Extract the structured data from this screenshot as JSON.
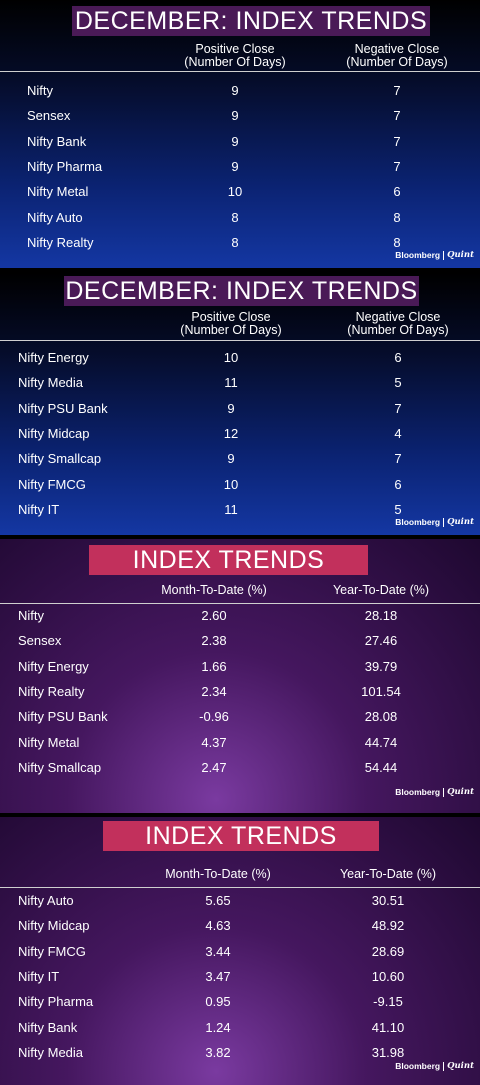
{
  "brand": {
    "part1": "Bloomberg",
    "part2": "Quint"
  },
  "chart_data": [
    {
      "type": "table",
      "title": "DECEMBER: INDEX TRENDS",
      "columns": [
        "Positive Close\n(Number Of Days)",
        "Negative Close\n(Number Of Days)"
      ],
      "column_lines": [
        [
          "Positive Close",
          "(Number Of Days)"
        ],
        [
          "Negative Close",
          "(Number Of Days)"
        ]
      ],
      "rows": [
        {
          "label": "Nifty",
          "values": [
            "9",
            "7"
          ]
        },
        {
          "label": "Sensex",
          "values": [
            "9",
            "7"
          ]
        },
        {
          "label": "Nifty Bank",
          "values": [
            "9",
            "7"
          ]
        },
        {
          "label": "Nifty Pharma",
          "values": [
            "9",
            "7"
          ]
        },
        {
          "label": "Nifty Metal",
          "values": [
            "10",
            "6"
          ]
        },
        {
          "label": "Nifty Auto",
          "values": [
            "8",
            "8"
          ]
        },
        {
          "label": "Nifty Realty",
          "values": [
            "8",
            "8"
          ]
        }
      ]
    },
    {
      "type": "table",
      "title": "DECEMBER: INDEX TRENDS",
      "columns": [
        "Positive Close\n(Number Of Days)",
        "Negative Close\n(Number Of Days)"
      ],
      "column_lines": [
        [
          "Positive Close",
          "(Number Of Days)"
        ],
        [
          "Negative Close",
          "(Number Of Days)"
        ]
      ],
      "rows": [
        {
          "label": "Nifty Energy",
          "values": [
            "10",
            "6"
          ]
        },
        {
          "label": "Nifty Media",
          "values": [
            "11",
            "5"
          ]
        },
        {
          "label": "Nifty PSU Bank",
          "values": [
            "9",
            "7"
          ]
        },
        {
          "label": "Nifty Midcap",
          "values": [
            "12",
            "4"
          ]
        },
        {
          "label": "Nifty Smallcap",
          "values": [
            "9",
            "7"
          ]
        },
        {
          "label": "Nifty FMCG",
          "values": [
            "10",
            "6"
          ]
        },
        {
          "label": "Nifty IT",
          "values": [
            "11",
            "5"
          ]
        }
      ]
    },
    {
      "type": "table",
      "title": "INDEX TRENDS",
      "columns": [
        "Month-To-Date (%)",
        "Year-To-Date (%)"
      ],
      "column_lines": [
        [
          "Month-To-Date (%)"
        ],
        [
          "Year-To-Date (%)"
        ]
      ],
      "rows": [
        {
          "label": "Nifty",
          "values": [
            "2.60",
            "28.18"
          ]
        },
        {
          "label": "Sensex",
          "values": [
            "2.38",
            "27.46"
          ]
        },
        {
          "label": "Nifty Energy",
          "values": [
            "1.66",
            "39.79"
          ]
        },
        {
          "label": "Nifty Realty",
          "values": [
            "2.34",
            "101.54"
          ]
        },
        {
          "label": "Nifty PSU Bank",
          "values": [
            "-0.96",
            "28.08"
          ]
        },
        {
          "label": "Nifty Metal",
          "values": [
            "4.37",
            "44.74"
          ]
        },
        {
          "label": "Nifty Smallcap",
          "values": [
            "2.47",
            "54.44"
          ]
        }
      ]
    },
    {
      "type": "table",
      "title": "INDEX TRENDS",
      "columns": [
        "Month-To-Date (%)",
        "Year-To-Date (%)"
      ],
      "column_lines": [
        [
          "Month-To-Date (%)"
        ],
        [
          "Year-To-Date (%)"
        ]
      ],
      "rows": [
        {
          "label": "Nifty Auto",
          "values": [
            "5.65",
            "30.51"
          ]
        },
        {
          "label": "Nifty Midcap",
          "values": [
            "4.63",
            "48.92"
          ]
        },
        {
          "label": "Nifty FMCG",
          "values": [
            "3.44",
            "28.69"
          ]
        },
        {
          "label": "Nifty IT",
          "values": [
            "3.47",
            "10.60"
          ]
        },
        {
          "label": "Nifty Pharma",
          "values": [
            "0.95",
            "-9.15"
          ]
        },
        {
          "label": "Nifty Bank",
          "values": [
            "1.24",
            "41.10"
          ]
        },
        {
          "label": "Nifty Media",
          "values": [
            "3.82",
            "31.98"
          ]
        }
      ]
    }
  ]
}
